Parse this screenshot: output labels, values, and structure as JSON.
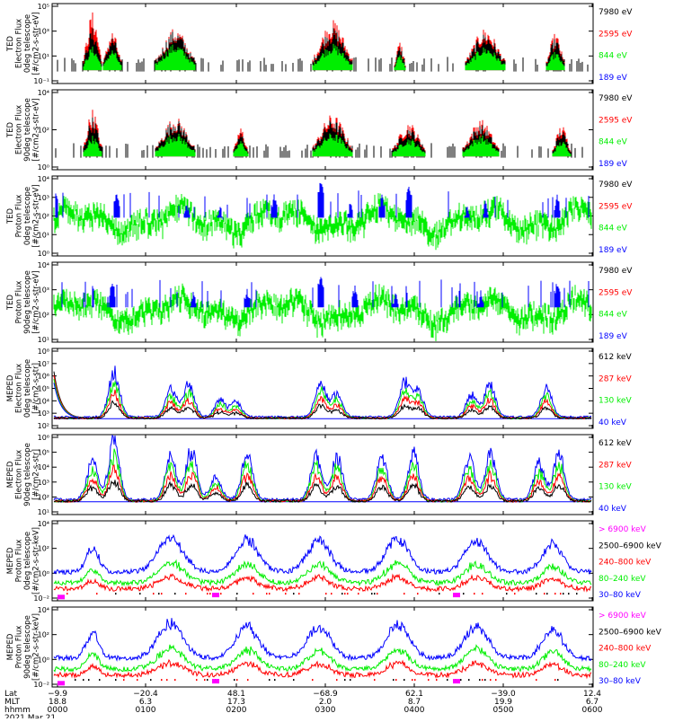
{
  "colors": {
    "black": "#000000",
    "red": "#ff0000",
    "green": "#00ee00",
    "blue": "#0000ff",
    "magenta": "#ff00ff"
  },
  "chart_data": [
    {
      "type": "line",
      "panel": 1,
      "ylabel": [
        "TED",
        "Electron Flux",
        "0deg telescope",
        "[#/cm2-s-str-eV]"
      ],
      "yticks": [
        "10⁵",
        "10³",
        "10¹",
        "10⁻¹"
      ],
      "ylim_exp": [
        -1,
        5
      ],
      "series": [
        {
          "name": "7980 eV",
          "color": "#000000"
        },
        {
          "name": "2595 eV",
          "color": "#ff0000"
        },
        {
          "name": "844 eV",
          "color": "#00ee00"
        },
        {
          "name": "189 eV",
          "color": "#0000ff"
        }
      ],
      "bursts": [
        [
          103,
          10,
          [
            4.4,
            3.2,
            1.8
          ]
        ],
        [
          125,
          10,
          [
            3.0,
            2.6,
            1.6
          ]
        ],
        [
          195,
          22,
          [
            3.2,
            3.0,
            2.0
          ]
        ],
        [
          370,
          22,
          [
            3.8,
            3.2,
            2.0
          ]
        ],
        [
          445,
          6,
          [
            2.2,
            1.8,
            1.2
          ]
        ],
        [
          540,
          22,
          [
            3.2,
            2.8,
            1.8
          ]
        ],
        [
          618,
          10,
          [
            2.8,
            2.4,
            1.4
          ]
        ]
      ]
    },
    {
      "type": "line",
      "panel": 2,
      "ylabel": [
        "TED",
        "Electron Flux",
        "90deg telescope",
        "[#/cm2-s-str-eV]"
      ],
      "yticks": [
        "10⁴",
        "10²",
        "10⁰"
      ],
      "ylim_exp": [
        -1,
        5
      ],
      "series": [
        {
          "name": "7980 eV",
          "color": "#000000"
        },
        {
          "name": "2595 eV",
          "color": "#ff0000"
        },
        {
          "name": "844 eV",
          "color": "#00ee00"
        },
        {
          "name": "189 eV",
          "color": "#0000ff"
        }
      ],
      "bursts": [
        [
          103,
          10,
          [
            3.6,
            3.0,
            1.6
          ]
        ],
        [
          195,
          22,
          [
            3.0,
            2.8,
            1.8
          ]
        ],
        [
          268,
          8,
          [
            2.2,
            1.8,
            1.2
          ]
        ],
        [
          370,
          22,
          [
            3.2,
            2.8,
            1.8
          ]
        ],
        [
          455,
          18,
          [
            2.6,
            2.2,
            1.4
          ]
        ],
        [
          535,
          20,
          [
            2.8,
            2.4,
            1.6
          ]
        ],
        [
          625,
          10,
          [
            2.4,
            2.0,
            1.2
          ]
        ]
      ]
    },
    {
      "type": "line",
      "panel": 3,
      "ylabel": [
        "TED",
        "Proton Flux",
        "0deg telescope",
        "[#/cm2-s-str-eV]"
      ],
      "yticks": [
        "10⁴",
        "10³",
        "10²",
        "10¹",
        "10⁰"
      ],
      "ylim_exp": [
        0,
        4.6
      ],
      "series": [
        {
          "name": "7980 eV",
          "color": "#000000"
        },
        {
          "name": "2595 eV",
          "color": "#ff0000"
        },
        {
          "name": "844 eV",
          "color": "#00ee00"
        },
        {
          "name": "189 eV",
          "color": "#0000ff"
        }
      ],
      "green_base_exp": 2.2,
      "blue_spikes": [
        [
          130,
          3.8
        ],
        [
          208,
          3.2
        ],
        [
          245,
          3.0
        ],
        [
          305,
          3.6
        ],
        [
          357,
          4.4
        ],
        [
          390,
          3.2
        ],
        [
          425,
          3.6
        ],
        [
          455,
          4.2
        ],
        [
          520,
          3.0
        ],
        [
          540,
          3.2
        ],
        [
          620,
          3.6
        ]
      ]
    },
    {
      "type": "line",
      "panel": 4,
      "ylabel": [
        "TED",
        "Proton Flux",
        "90deg telescope",
        "[#/cm2-s-str-eV]"
      ],
      "yticks": [
        "10⁴",
        "10³",
        "10²",
        "10¹"
      ],
      "ylim_exp": [
        0,
        4.6
      ],
      "series": [
        {
          "name": "7980 eV",
          "color": "#000000"
        },
        {
          "name": "2595 eV",
          "color": "#ff0000"
        },
        {
          "name": "844 eV",
          "color": "#00ee00"
        },
        {
          "name": "189 eV",
          "color": "#0000ff"
        }
      ],
      "green_base_exp": 2.0,
      "blue_spikes": [
        [
          125,
          3.6
        ],
        [
          215,
          3.0
        ],
        [
          275,
          3.2
        ],
        [
          357,
          4.0
        ],
        [
          395,
          3.4
        ],
        [
          440,
          3.0
        ],
        [
          535,
          3.0
        ],
        [
          620,
          3.6
        ]
      ]
    },
    {
      "type": "line",
      "panel": 5,
      "ylabel": [
        "MEPED",
        "Electron Flux",
        "0deg telescope",
        "[#/cm2-s-str]"
      ],
      "yticks": [
        "10⁸",
        "10⁷",
        "10⁶",
        "10⁵",
        "10⁴",
        "10³",
        "10²"
      ],
      "ylim_exp": [
        1.4,
        8
      ],
      "series": [
        {
          "name": "612 keV",
          "color": "#000000"
        },
        {
          "name": "287 keV",
          "color": "#ff0000"
        },
        {
          "name": "130 keV",
          "color": "#00ee00"
        },
        {
          "name": "40 keV",
          "color": "#0000ff"
        }
      ],
      "bumps": [
        [
          127,
          5.8
        ],
        [
          190,
          4.4
        ],
        [
          210,
          4.8
        ],
        [
          245,
          3.6
        ],
        [
          263,
          3.4
        ],
        [
          357,
          5.0
        ],
        [
          375,
          4.0
        ],
        [
          450,
          5.0
        ],
        [
          465,
          4.4
        ],
        [
          525,
          4.0
        ],
        [
          545,
          4.8
        ],
        [
          608,
          4.6
        ]
      ]
    },
    {
      "type": "line",
      "panel": 6,
      "ylabel": [
        "MEPED",
        "Electron Flux",
        "90deg telescope",
        "[#/cm2-s-str]"
      ],
      "yticks": [
        "10⁶",
        "10⁵",
        "10⁴",
        "10³",
        "10²",
        "10¹"
      ],
      "ylim_exp": [
        1,
        6
      ],
      "series": [
        {
          "name": "612 keV",
          "color": "#000000"
        },
        {
          "name": "287 keV",
          "color": "#ff0000"
        },
        {
          "name": "130 keV",
          "color": "#00ee00"
        },
        {
          "name": "40 keV",
          "color": "#0000ff"
        }
      ],
      "bumps": [
        [
          103,
          4.2
        ],
        [
          127,
          5.4
        ],
        [
          190,
          4.6
        ],
        [
          213,
          4.8
        ],
        [
          240,
          3.2
        ],
        [
          275,
          4.6
        ],
        [
          352,
          4.6
        ],
        [
          375,
          4.4
        ],
        [
          425,
          4.4
        ],
        [
          460,
          4.6
        ],
        [
          522,
          4.4
        ],
        [
          546,
          4.6
        ],
        [
          600,
          4.0
        ],
        [
          622,
          4.6
        ]
      ]
    },
    {
      "type": "line",
      "panel": 7,
      "ylabel": [
        "MEPED",
        "Proton Flux",
        "0deg telescope",
        "[#/cm2-s-str-keV]"
      ],
      "yticks": [
        "10⁴",
        "10²",
        "10⁰",
        "10⁻²"
      ],
      "ylim_exp": [
        -2.4,
        5.6
      ],
      "series": [
        {
          "name": "> 6900 keV",
          "color": "#ff00ff"
        },
        {
          "name": "2500–6900 keV",
          "color": "#000000"
        },
        {
          "name": "240–800 keV",
          "color": "#ff0000"
        },
        {
          "name": "80–240 keV",
          "color": "#00ee00"
        },
        {
          "name": "30–80 keV",
          "color": "#0000ff"
        }
      ],
      "humps": [
        [
          103,
          10,
          2.8
        ],
        [
          190,
          20,
          3.8
        ],
        [
          275,
          18,
          3.6
        ],
        [
          355,
          18,
          3.6
        ],
        [
          442,
          18,
          3.8
        ],
        [
          530,
          18,
          3.6
        ],
        [
          615,
          16,
          3.2
        ]
      ]
    },
    {
      "type": "line",
      "panel": 8,
      "ylabel": [
        "MEPED",
        "Proton Flux",
        "90deg telescope",
        "[#/cm2-s-str-keV]"
      ],
      "yticks": [
        "10⁴",
        "10²",
        "10⁰",
        "10⁻²"
      ],
      "ylim_exp": [
        -2.4,
        5.6
      ],
      "series": [
        {
          "name": "> 6900 keV",
          "color": "#ff00ff"
        },
        {
          "name": "2500–6900 keV",
          "color": "#000000"
        },
        {
          "name": "240–800 keV",
          "color": "#ff0000"
        },
        {
          "name": "80–240 keV",
          "color": "#00ee00"
        },
        {
          "name": "30–80 keV",
          "color": "#0000ff"
        }
      ],
      "humps": [
        [
          103,
          10,
          3.0
        ],
        [
          190,
          20,
          3.9
        ],
        [
          275,
          18,
          3.6
        ],
        [
          355,
          18,
          3.6
        ],
        [
          443,
          18,
          3.8
        ],
        [
          530,
          18,
          3.8
        ],
        [
          615,
          16,
          3.4
        ]
      ]
    }
  ],
  "x_axis": {
    "row_labels": [
      "Lat",
      "MLT",
      "hhmm",
      "2021 Mar 21"
    ],
    "ticks": [
      {
        "lat": "−9.9",
        "mlt": "18.8",
        "hhmm": "0000"
      },
      {
        "lat": "−20.4",
        "mlt": "6.3",
        "hhmm": "0100"
      },
      {
        "lat": "48.1",
        "mlt": "17.3",
        "hhmm": "0200"
      },
      {
        "lat": "−68.9",
        "mlt": "2.0",
        "hhmm": "0300"
      },
      {
        "lat": "62.1",
        "mlt": "8.7",
        "hhmm": "0400"
      },
      {
        "lat": "−39.0",
        "mlt": "19.9",
        "hhmm": "0500"
      },
      {
        "lat": "12.4",
        "mlt": "6.7",
        "hhmm": "0600"
      }
    ]
  }
}
